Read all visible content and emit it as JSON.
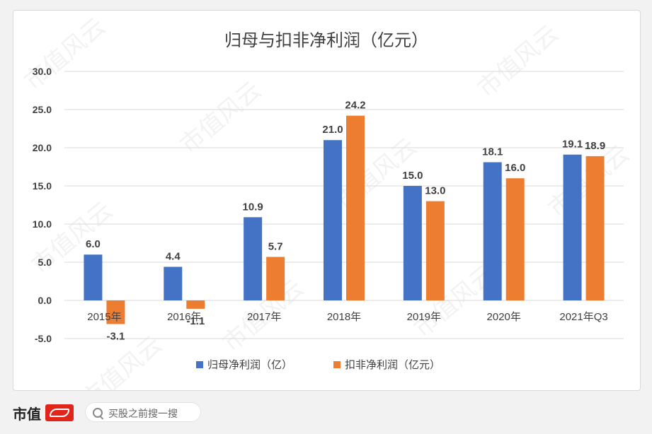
{
  "chart_data": {
    "type": "bar",
    "title": "归母与扣非净利润（亿元）",
    "categories": [
      "2015年",
      "2016年",
      "2017年",
      "2018年",
      "2019年",
      "2020年",
      "2021年Q3"
    ],
    "series": [
      {
        "name": "归母净利润（亿）",
        "color": "#4472c4",
        "values": [
          6.0,
          4.4,
          10.9,
          21.0,
          15.0,
          18.1,
          19.1
        ]
      },
      {
        "name": "扣非净利润（亿元）",
        "color": "#ed7d31",
        "values": [
          -3.1,
          -1.1,
          5.7,
          24.2,
          13.0,
          16.0,
          18.9
        ]
      }
    ],
    "ylim": [
      -5.0,
      30.0
    ],
    "yticks": [
      "-5.0",
      "0.0",
      "5.0",
      "10.0",
      "15.0",
      "20.0",
      "25.0",
      "30.0"
    ],
    "grid": true,
    "legend_position": "bottom"
  },
  "watermark": "市值风云",
  "footer": {
    "brand": "市值",
    "search_placeholder": "买股之前搜一搜"
  }
}
